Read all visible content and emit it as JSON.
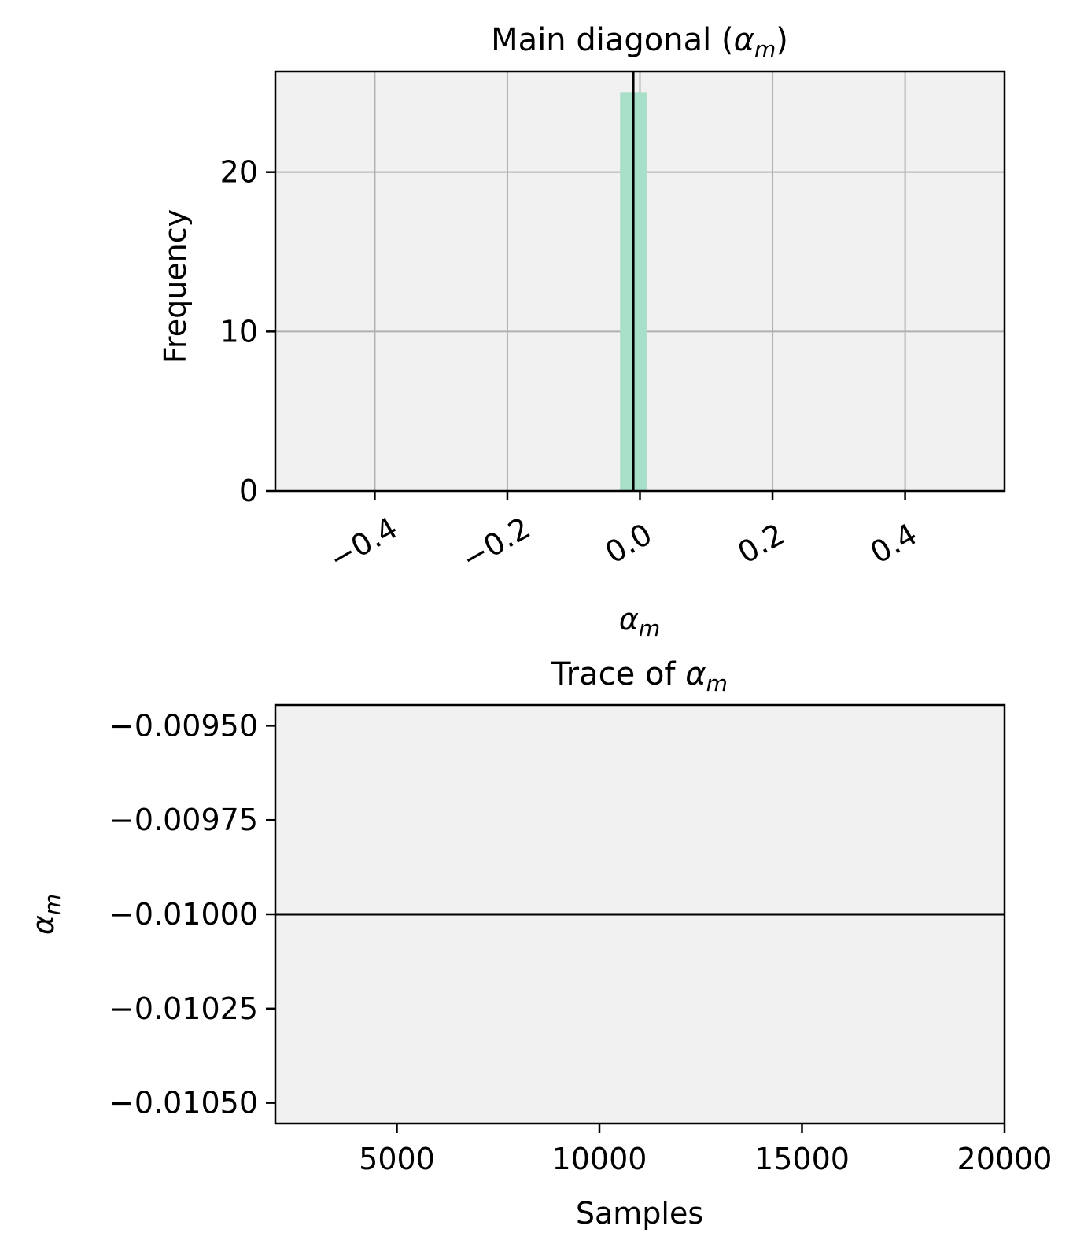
{
  "chart_data": [
    {
      "type": "bar",
      "title": "Main diagonal (",
      "title_symbol": "α",
      "title_sub": "m",
      "title_suffix": ")",
      "xlabel_symbol": "α",
      "xlabel_sub": "m",
      "ylabel": "Frequency",
      "xlim": [
        -0.55,
        0.55
      ],
      "ylim": [
        0,
        26.3
      ],
      "xticks": [
        -0.4,
        -0.2,
        0.0,
        0.2,
        0.4
      ],
      "xtick_labels": [
        "−0.4",
        "−0.2",
        "0.0",
        "0.2",
        "0.4"
      ],
      "yticks": [
        0,
        10,
        20
      ],
      "ytick_labels": [
        "0",
        "10",
        "20"
      ],
      "grid": true,
      "bars": [
        {
          "x0": -0.03,
          "x1": 0.01,
          "value": 25
        }
      ],
      "vline": -0.01,
      "bar_color": "#a8dfc8",
      "line_color": "#000000",
      "background": "#f1f1f1"
    },
    {
      "type": "line",
      "title": "Trace of ",
      "title_symbol": "α",
      "title_sub": "m",
      "xlabel": "Samples",
      "ylabel_symbol": "α",
      "ylabel_sub": "m",
      "xlim": [
        2000,
        20000
      ],
      "ylim": [
        -0.010555,
        -0.009445
      ],
      "xticks": [
        5000,
        10000,
        15000,
        20000
      ],
      "xtick_labels": [
        "5000",
        "10000",
        "15000",
        "20000"
      ],
      "yticks": [
        -0.0095,
        -0.00975,
        -0.01,
        -0.01025,
        -0.0105
      ],
      "ytick_labels": [
        "−0.00950",
        "−0.00975",
        "−0.01000",
        "−0.01025",
        "−0.01050"
      ],
      "grid": false,
      "series": [
        {
          "x": [
            2000,
            20000
          ],
          "y": [
            -0.01,
            -0.01
          ]
        }
      ],
      "line_color": "#000000",
      "background": "#f1f1f1"
    }
  ]
}
